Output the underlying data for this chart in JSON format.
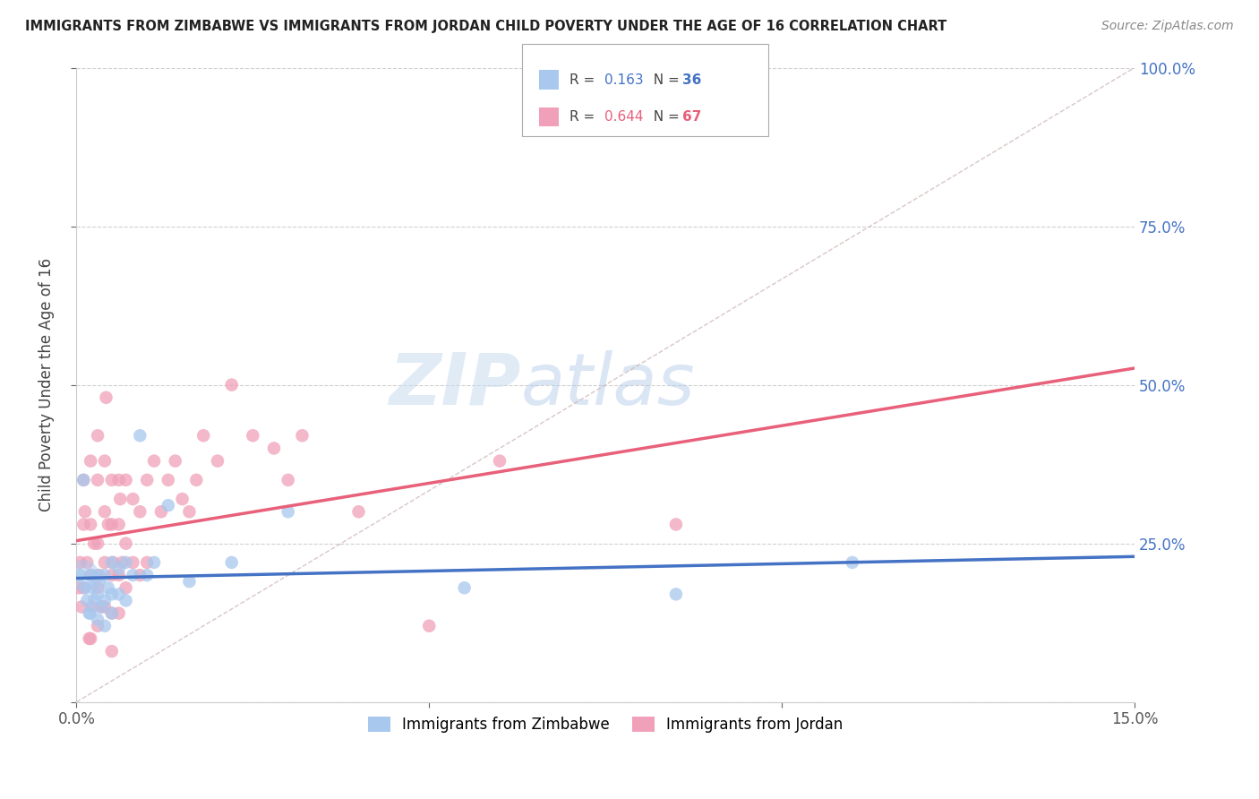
{
  "title": "IMMIGRANTS FROM ZIMBABWE VS IMMIGRANTS FROM JORDAN CHILD POVERTY UNDER THE AGE OF 16 CORRELATION CHART",
  "source": "Source: ZipAtlas.com",
  "ylabel": "Child Poverty Under the Age of 16",
  "xlim": [
    0.0,
    0.15
  ],
  "ylim": [
    0.0,
    1.0
  ],
  "color_zimbabwe": "#A8C8EE",
  "color_jordan": "#F0A0B8",
  "color_line_zimbabwe": "#4472C4",
  "color_line_jordan": "#E8607A",
  "color_diagonal": "#D0B8B8",
  "watermark_zip": "ZIP",
  "watermark_atlas": "atlas",
  "legend_R_zimbabwe": "0.163",
  "legend_N_zimbabwe": "36",
  "legend_R_jordan": "0.644",
  "legend_N_jordan": "67",
  "zimbabwe_x": [
    0.0005,
    0.001,
    0.0012,
    0.0015,
    0.0018,
    0.002,
    0.002,
    0.0022,
    0.0025,
    0.003,
    0.003,
    0.003,
    0.0032,
    0.0035,
    0.004,
    0.004,
    0.004,
    0.0045,
    0.005,
    0.005,
    0.005,
    0.006,
    0.006,
    0.007,
    0.007,
    0.008,
    0.009,
    0.01,
    0.011,
    0.013,
    0.016,
    0.022,
    0.03,
    0.055,
    0.085,
    0.11
  ],
  "zimbabwe_y": [
    0.2,
    0.35,
    0.18,
    0.16,
    0.14,
    0.2,
    0.14,
    0.18,
    0.16,
    0.2,
    0.17,
    0.13,
    0.19,
    0.15,
    0.2,
    0.16,
    0.12,
    0.18,
    0.22,
    0.17,
    0.14,
    0.21,
    0.17,
    0.22,
    0.16,
    0.2,
    0.42,
    0.2,
    0.22,
    0.31,
    0.19,
    0.22,
    0.3,
    0.18,
    0.17,
    0.22
  ],
  "jordan_x": [
    0.0003,
    0.0005,
    0.0007,
    0.001,
    0.001,
    0.001,
    0.0012,
    0.0015,
    0.0018,
    0.002,
    0.002,
    0.002,
    0.002,
    0.0022,
    0.0025,
    0.003,
    0.003,
    0.003,
    0.003,
    0.003,
    0.0032,
    0.0035,
    0.004,
    0.004,
    0.004,
    0.004,
    0.0042,
    0.0045,
    0.005,
    0.005,
    0.005,
    0.005,
    0.005,
    0.0052,
    0.006,
    0.006,
    0.006,
    0.006,
    0.0062,
    0.0065,
    0.007,
    0.007,
    0.007,
    0.008,
    0.008,
    0.009,
    0.009,
    0.01,
    0.01,
    0.011,
    0.012,
    0.013,
    0.014,
    0.015,
    0.016,
    0.017,
    0.018,
    0.02,
    0.022,
    0.025,
    0.028,
    0.03,
    0.032,
    0.04,
    0.05,
    0.06,
    0.085
  ],
  "jordan_y": [
    0.18,
    0.22,
    0.15,
    0.35,
    0.28,
    0.18,
    0.3,
    0.22,
    0.1,
    0.38,
    0.28,
    0.2,
    0.1,
    0.15,
    0.25,
    0.42,
    0.35,
    0.25,
    0.18,
    0.12,
    0.2,
    0.15,
    0.38,
    0.3,
    0.22,
    0.15,
    0.48,
    0.28,
    0.35,
    0.28,
    0.2,
    0.14,
    0.08,
    0.22,
    0.35,
    0.28,
    0.2,
    0.14,
    0.32,
    0.22,
    0.35,
    0.25,
    0.18,
    0.32,
    0.22,
    0.3,
    0.2,
    0.35,
    0.22,
    0.38,
    0.3,
    0.35,
    0.38,
    0.32,
    0.3,
    0.35,
    0.42,
    0.38,
    0.5,
    0.42,
    0.4,
    0.35,
    0.42,
    0.3,
    0.12,
    0.38,
    0.28
  ],
  "background_color": "#FFFFFF",
  "grid_color": "#D0D0D0"
}
